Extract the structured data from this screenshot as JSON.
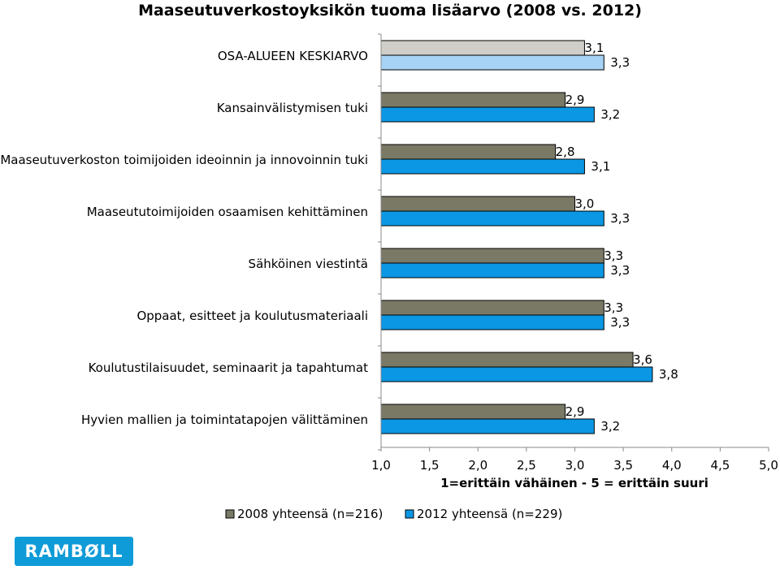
{
  "chart_data": {
    "type": "bar",
    "orientation": "horizontal",
    "title": "Maaseutuverkostoyksikön tuoma lisäarvo (2008 vs. 2012)",
    "xlabel": "1=erittäin vähäinen - 5 = erittäin suuri",
    "xlim": [
      1.0,
      5.0
    ],
    "xticks": [
      "1,0",
      "1,5",
      "2,0",
      "2,5",
      "3,0",
      "3,5",
      "4,0",
      "4,5",
      "5,0"
    ],
    "categories": [
      "OSA-ALUEEN KESKIARVO",
      "Kansainvälistymisen tuki",
      "Maaseutuverkoston toimijoiden ideoinnin ja innovoinnin tuki",
      "Maaseututoimijoiden osaamisen kehittäminen",
      "Sähköinen viestintä",
      "Oppaat, esitteet ja koulutusmateriaali",
      "Koulutustilaisuudet, seminaarit ja tapahtumat",
      "Hyvien mallien ja toimintatapojen välittäminen"
    ],
    "series": [
      {
        "name": "2008 yhteensä (n=216)",
        "values": [
          3.1,
          2.9,
          2.8,
          3.0,
          3.3,
          3.3,
          3.6,
          2.9
        ],
        "labels": [
          "3,1",
          "2,9",
          "2,8",
          "3,0",
          "3,3",
          "3,3",
          "3,6",
          "2,9"
        ],
        "color": "#7a7966",
        "highlight_color": "#cfcec8"
      },
      {
        "name": "2012 yhteensä (n=229)",
        "values": [
          3.3,
          3.2,
          3.1,
          3.3,
          3.3,
          3.3,
          3.8,
          3.2
        ],
        "labels": [
          "3,3",
          "3,2",
          "3,1",
          "3,3",
          "3,3",
          "3,3",
          "3,8",
          "3,2"
        ],
        "color": "#0b97e4",
        "highlight_color": "#a6d2f5"
      }
    ],
    "highlight_category_index": 0,
    "legend_position": "bottom",
    "grid": false
  },
  "logo": {
    "text": "RAMBØLL"
  }
}
